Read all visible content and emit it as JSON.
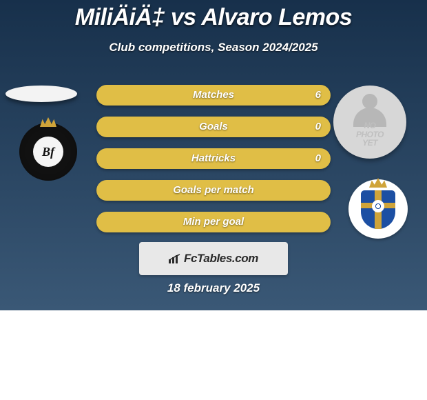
{
  "colors": {
    "bg_top": "#17304b",
    "bg_bottom": "#3a5876",
    "white_bg": "#ffffff",
    "title": "#ffffff",
    "subtitle": "#ffffff",
    "pill_bg": "#e0be46",
    "pill_text": "#ffffff",
    "left_avatar": "#f3f3f3",
    "left_badge_ring": "#111111",
    "left_badge_inner": "#f5f5f5",
    "left_badge_letters": "#111111",
    "left_badge_crown": "#cfa43a",
    "right_avatar_bg": "#d7d7d7",
    "silhouette": "#b7b7b7",
    "placeholder_text": "#bfbfbf",
    "right_badge_bg": "#ffffff",
    "ov_blue": "#1c4fa3",
    "ov_gold": "#cfa43a",
    "ov_crown": "#cfa43a",
    "fct_bg": "#e8e8e8",
    "fct_text": "#2a2a2a",
    "date": "#ffffff"
  },
  "title": "MiliÄiÄ‡ vs Alvaro Lemos",
  "subtitle": "Club competitions, Season 2024/2025",
  "stats": [
    {
      "label": "Matches",
      "value": "6"
    },
    {
      "label": "Goals",
      "value": "0"
    },
    {
      "label": "Hattricks",
      "value": "0"
    },
    {
      "label": "Goals per match",
      "value": ""
    },
    {
      "label": "Min per goal",
      "value": ""
    }
  ],
  "left_badge_letters": "Bf",
  "placeholder": {
    "line1": "NO",
    "line2": "PHOTO",
    "line3": "YET"
  },
  "fctables_label": "FcTables.com",
  "date": "18 february 2025"
}
